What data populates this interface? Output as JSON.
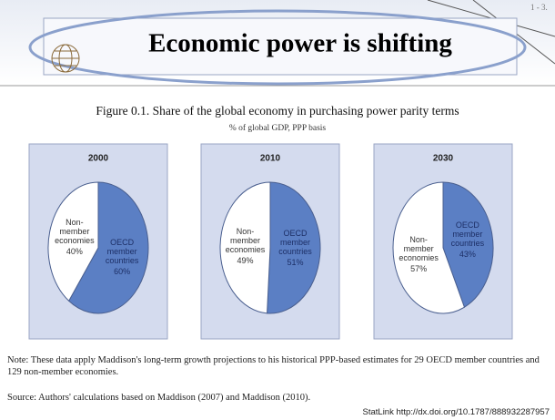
{
  "slide_title": "Economic power is shifting",
  "slide_number": "1 - 3.",
  "figure_title": "Figure 0.1. Share of the global economy in purchasing power parity terms",
  "figure_subtitle": "% of global GDP, PPP basis",
  "note": "Note: These data apply Maddison's long-term growth projections to his historical PPP-based estimates for 29 OECD member countries and 129 non-member economies.",
  "source": "Source: Authors' calculations based on Maddison (2007) and Maddison (2010).",
  "statlink": "StatLink http://dx.doi.org/10.1787/888932287957",
  "chart_data": [
    {
      "type": "pie",
      "title": "2000",
      "categories": [
        "OECD member countries",
        "Non-member economies"
      ],
      "values": [
        60,
        40
      ],
      "value_labels": [
        "60%",
        "40%"
      ],
      "colors": [
        "#5b7fc4",
        "#ffffff"
      ]
    },
    {
      "type": "pie",
      "title": "2010",
      "categories": [
        "OECD member countries",
        "Non-member economies"
      ],
      "values": [
        51,
        49
      ],
      "value_labels": [
        "51%",
        "49%"
      ],
      "colors": [
        "#5b7fc4",
        "#ffffff"
      ]
    },
    {
      "type": "pie",
      "title": "2030",
      "categories": [
        "OECD member countries",
        "Non-member economies"
      ],
      "values": [
        43,
        57
      ],
      "value_labels": [
        "43%",
        "57%"
      ],
      "colors": [
        "#5b7fc4",
        "#ffffff"
      ]
    }
  ]
}
